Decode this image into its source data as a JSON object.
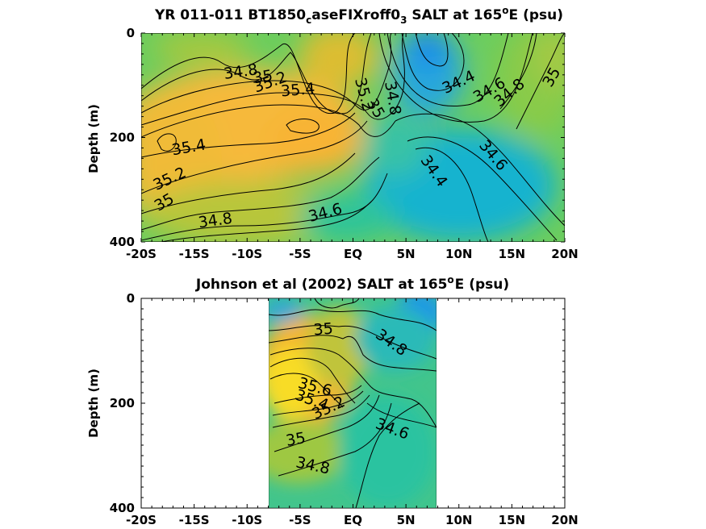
{
  "chart_data": [
    {
      "type": "contour",
      "title_main": "YR 011-011 BT1850",
      "title_sub1": "c",
      "title_mid": "aseFIXroff0",
      "title_sub2": "3",
      "title_tail1": " SALT at 165",
      "title_sup": "o",
      "title_tail2": "E (psu)",
      "ylabel": "Depth (m)",
      "xlim": [
        -20,
        20
      ],
      "ylim": [
        0,
        400
      ],
      "xticks": [
        "-20S",
        "-15S",
        "-10S",
        "-5S",
        "EQ",
        "5N",
        "10N",
        "15N",
        "20N"
      ],
      "yticks": [
        "0",
        "200",
        "400"
      ],
      "contour_labels": [
        {
          "text": "34.8",
          "lat": -10.6,
          "depth": 75,
          "angle": -8
        },
        {
          "text": "35",
          "lat": -8.5,
          "depth": 85,
          "angle": -10
        },
        {
          "text": "35.2",
          "lat": -7.8,
          "depth": 95,
          "angle": -20
        },
        {
          "text": "35.4",
          "lat": -5.2,
          "depth": 110,
          "angle": -5
        },
        {
          "text": "35.2",
          "lat": 1.0,
          "depth": 118,
          "angle": 75
        },
        {
          "text": "35",
          "lat": 2.1,
          "depth": 145,
          "angle": 60
        },
        {
          "text": "34.8",
          "lat": 3.7,
          "depth": 125,
          "angle": 80
        },
        {
          "text": "34.4",
          "lat": 10.0,
          "depth": 95,
          "angle": -25
        },
        {
          "text": "34.6",
          "lat": 12.9,
          "depth": 110,
          "angle": -30
        },
        {
          "text": "34.8",
          "lat": 14.8,
          "depth": 115,
          "angle": -40
        },
        {
          "text": "35",
          "lat": 18.8,
          "depth": 85,
          "angle": -60
        },
        {
          "text": "35.4",
          "lat": -15.5,
          "depth": 220,
          "angle": -10
        },
        {
          "text": "34.6",
          "lat": 13.2,
          "depth": 235,
          "angle": 50
        },
        {
          "text": "34.4",
          "lat": 7.6,
          "depth": 265,
          "angle": 55
        },
        {
          "text": "35.2",
          "lat": -17.3,
          "depth": 280,
          "angle": -25
        },
        {
          "text": "35",
          "lat": -17.8,
          "depth": 325,
          "angle": -30
        },
        {
          "text": "34.8",
          "lat": -13.0,
          "depth": 360,
          "angle": -8
        },
        {
          "text": "34.6",
          "lat": -2.6,
          "depth": 345,
          "angle": -15
        }
      ],
      "colors": {
        "fresh": "#1aa2e4",
        "mid": "#2ec58c",
        "salty": "#f6bd32",
        "saltiest": "#f8e41e"
      }
    },
    {
      "type": "contour",
      "title_main": "Johnson et al (2002) SALT at 165",
      "title_sup": "o",
      "title_tail": "E (psu)",
      "ylabel": "Depth (m)",
      "xlim": [
        -20,
        20
      ],
      "ylim": [
        0,
        400
      ],
      "data_lat_range": [
        -8,
        8
      ],
      "xticks": [
        "-20S",
        "-15S",
        "-10S",
        "-5S",
        "EQ",
        "5N",
        "10N",
        "15N",
        "20N"
      ],
      "yticks": [
        "0",
        "200",
        "400"
      ],
      "contour_labels": [
        {
          "text": "35",
          "lat": -2.8,
          "depth": 60,
          "angle": -5
        },
        {
          "text": "34.8",
          "lat": 3.6,
          "depth": 85,
          "angle": 35
        },
        {
          "text": "35.6",
          "lat": -3.6,
          "depth": 170,
          "angle": 15
        },
        {
          "text": "35.4",
          "lat": -3.9,
          "depth": 195,
          "angle": 20
        },
        {
          "text": "35.2",
          "lat": -2.3,
          "depth": 210,
          "angle": -25
        },
        {
          "text": "34.6",
          "lat": 3.7,
          "depth": 250,
          "angle": 20
        },
        {
          "text": "35",
          "lat": -5.4,
          "depth": 270,
          "angle": -10
        },
        {
          "text": "34.8",
          "lat": -3.8,
          "depth": 320,
          "angle": 12
        }
      ],
      "colors": {
        "fresh": "#1aa2e4",
        "mid": "#2ec58c",
        "salty": "#f6bd32",
        "saltiest": "#f8e41e"
      }
    }
  ]
}
